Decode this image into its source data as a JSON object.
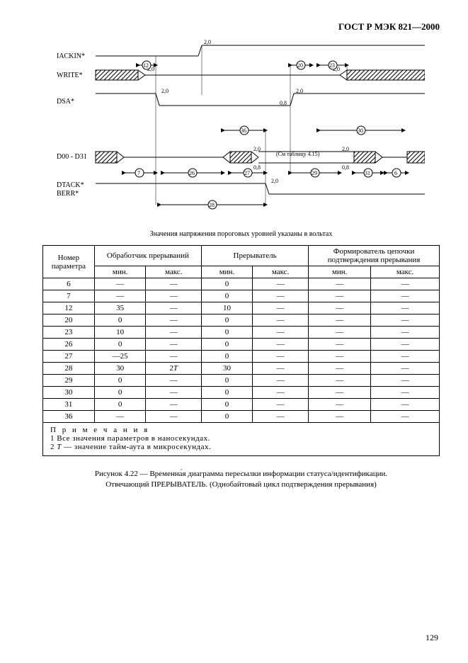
{
  "header": "ГОСТ Р МЭК 821—2000",
  "diagram": {
    "signals": [
      "IACKIN*",
      "WRITE*",
      "DSA*",
      "D00 - D31",
      "DTACK*",
      "BERR*"
    ],
    "voltage_high": "2,0",
    "voltage_low": "0,8",
    "table_ref": "(См таблицу 4.15)",
    "timing_labels": [
      "12",
      "20",
      "23",
      "36",
      "30",
      "7",
      "26",
      "27",
      "29",
      "31",
      "6",
      "28"
    ],
    "caption": "Значения напряжения пороговых уровней указаны в вольтах"
  },
  "table": {
    "col_param": "Номер параметра",
    "group_handler": "Обработчик прерываний",
    "group_interrupter": "Прерыватель",
    "group_daisy": "Формирователь цепочки подтверждения прерывания",
    "sub_min": "мин.",
    "sub_max": "макс.",
    "rows": [
      {
        "n": "6",
        "a": "—",
        "b": "—",
        "c": "0",
        "d": "—",
        "e": "—",
        "f": "—"
      },
      {
        "n": "7",
        "a": "—",
        "b": "—",
        "c": "0",
        "d": "—",
        "e": "—",
        "f": "—"
      },
      {
        "n": "12",
        "a": "35",
        "b": "—",
        "c": "10",
        "d": "—",
        "e": "—",
        "f": "—"
      },
      {
        "n": "20",
        "a": "0",
        "b": "—",
        "c": "0",
        "d": "—",
        "e": "—",
        "f": "—"
      },
      {
        "n": "23",
        "a": "10",
        "b": "—",
        "c": "0",
        "d": "—",
        "e": "—",
        "f": "—"
      },
      {
        "n": "26",
        "a": "0",
        "b": "—",
        "c": "0",
        "d": "—",
        "e": "—",
        "f": "—"
      },
      {
        "n": "27",
        "a": "—25",
        "b": "—",
        "c": "0",
        "d": "—",
        "e": "—",
        "f": "—"
      },
      {
        "n": "28",
        "a": "30",
        "b": "2T",
        "c": "30",
        "d": "—",
        "e": "—",
        "f": "—"
      },
      {
        "n": "29",
        "a": "0",
        "b": "—",
        "c": "0",
        "d": "—",
        "e": "—",
        "f": "—"
      },
      {
        "n": "30",
        "a": "0",
        "b": "—",
        "c": "0",
        "d": "—",
        "e": "—",
        "f": "—"
      },
      {
        "n": "31",
        "a": "0",
        "b": "—",
        "c": "0",
        "d": "—",
        "e": "—",
        "f": "—"
      },
      {
        "n": "36",
        "a": "—",
        "b": "—",
        "c": "0",
        "d": "—",
        "e": "—",
        "f": "—"
      }
    ]
  },
  "notes": {
    "title": "П р и м е ч а н и я",
    "line1": "1 Все значения параметров в наносекундах.",
    "line2": "2 T — значение тайм-аута в микросекундах."
  },
  "figure": {
    "line1": "Рисунок 4.22 — Временна́я диаграмма пересылки информации статуса/идентификации.",
    "line2": "Отвечающий ПРЕРЫВАТЕЛЬ. (Однобайтовый цикл подтверждения прерывания)"
  },
  "page_number": "129"
}
